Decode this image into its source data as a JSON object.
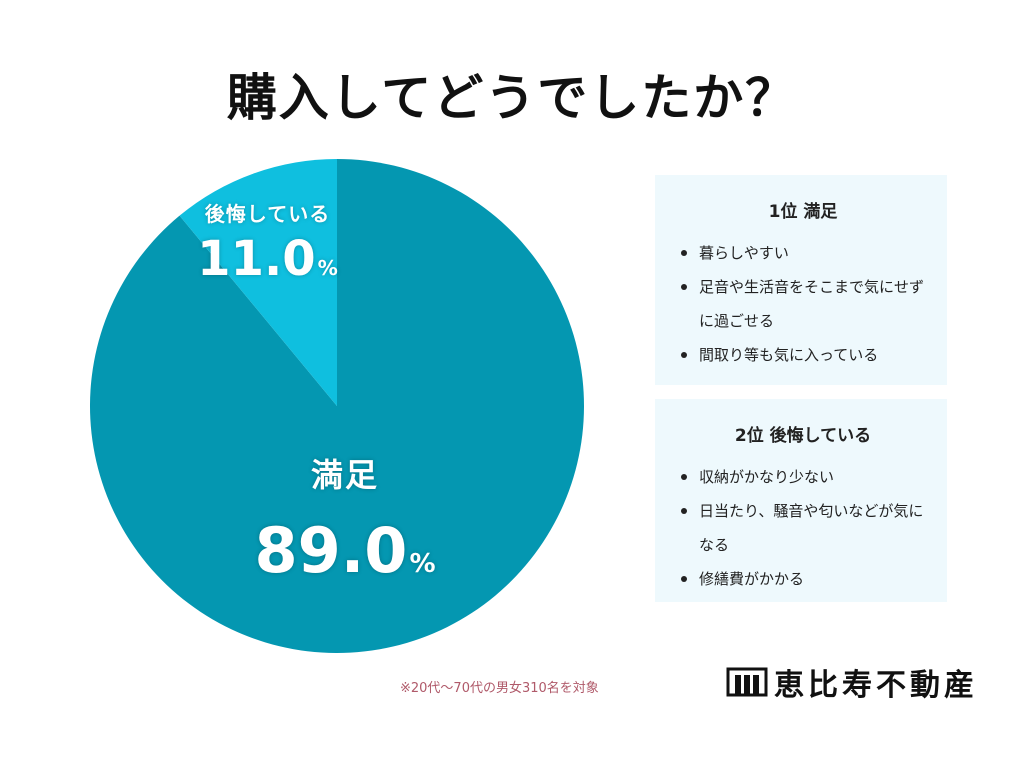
{
  "title": "購入してどうでしたか？",
  "chart_data": {
    "type": "pie",
    "slices": [
      {
        "label": "満足",
        "value": 89.0,
        "color": "#0497b1"
      },
      {
        "label": "後悔している",
        "value": 11.0,
        "color": "#0fbfdf"
      }
    ],
    "unit": "%"
  },
  "slice_labels": {
    "regret_name": "後悔している",
    "regret_value": "11.0",
    "satisfied_name": "満足",
    "satisfied_value": "89.0",
    "percent_sign": "%"
  },
  "panels": [
    {
      "title": "1位 満足",
      "items": [
        "暮らしやすい",
        "足音や生活音をそこまで気にせずに過ごせる",
        "間取り等も気に入っている"
      ]
    },
    {
      "title": "2位 後悔している",
      "items": [
        "収納がかなり少ない",
        "日当たり、騒音や匂いなどが気になる",
        "修繕費がかかる"
      ]
    }
  ],
  "note": "※20代〜70代の男女310名を対象",
  "logo": {
    "text": "恵比寿不動産"
  }
}
